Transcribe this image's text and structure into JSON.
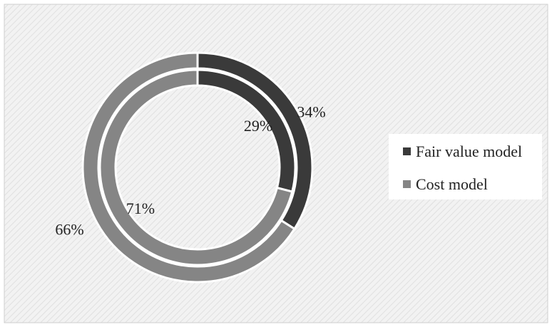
{
  "chart_data": {
    "type": "pie",
    "variant": "nested-doughnut",
    "categories": [
      "Fair value model",
      "Cost model"
    ],
    "series": [
      {
        "values": [
          34,
          66
        ],
        "labels": [
          "34%",
          "66%"
        ]
      },
      {
        "values": [
          29,
          71
        ],
        "labels": [
          "29%",
          "71%"
        ]
      }
    ],
    "colors": [
      "#3a3a3a",
      "#858585"
    ],
    "legend_position": "right",
    "background": "hatched"
  }
}
